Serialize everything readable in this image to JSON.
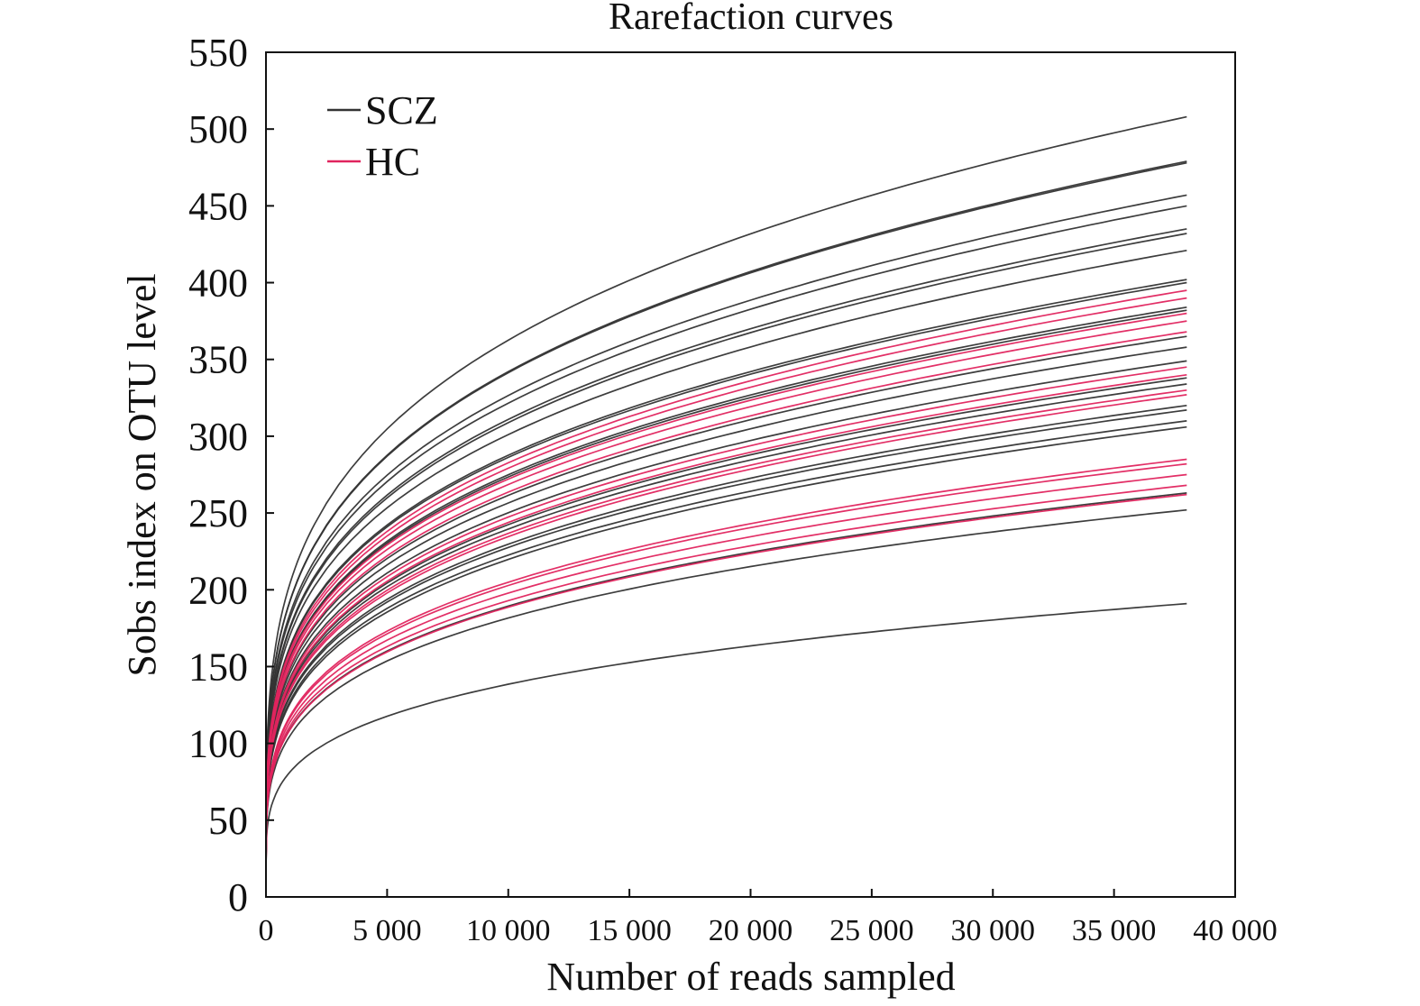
{
  "chart_data": {
    "type": "line",
    "title": "Rarefaction curves",
    "xlabel": "Number of reads sampled",
    "ylabel": "Sobs index on OTU level",
    "xlim": [
      0,
      40000
    ],
    "ylim": [
      0,
      550
    ],
    "x_ticks": [
      "0",
      "5 000",
      "10 000",
      "15 000",
      "20 000",
      "25 000",
      "30 000",
      "35 000",
      "40 000"
    ],
    "y_ticks": [
      "0",
      "50",
      "100",
      "150",
      "200",
      "250",
      "300",
      "350",
      "400",
      "450",
      "500",
      "550"
    ],
    "x_max_sampled": 38000,
    "grid": false,
    "legend_position": "top-left",
    "legend": [
      {
        "label": "SCZ",
        "color": "#333333"
      },
      {
        "label": "HC",
        "color": "#e0245e"
      }
    ],
    "groups": [
      {
        "name": "SCZ",
        "color": "#333333",
        "final_values": [
          508,
          479,
          478,
          457,
          450,
          435,
          432,
          421,
          402,
          400,
          384,
          382,
          365,
          358,
          349,
          338,
          334,
          320,
          317,
          310,
          306,
          263,
          252,
          191
        ]
      },
      {
        "name": "HC",
        "color": "#e0245e",
        "final_values": [
          395,
          390,
          380,
          375,
          368,
          345,
          340,
          330,
          327,
          285,
          282,
          275,
          268,
          262
        ]
      }
    ]
  }
}
